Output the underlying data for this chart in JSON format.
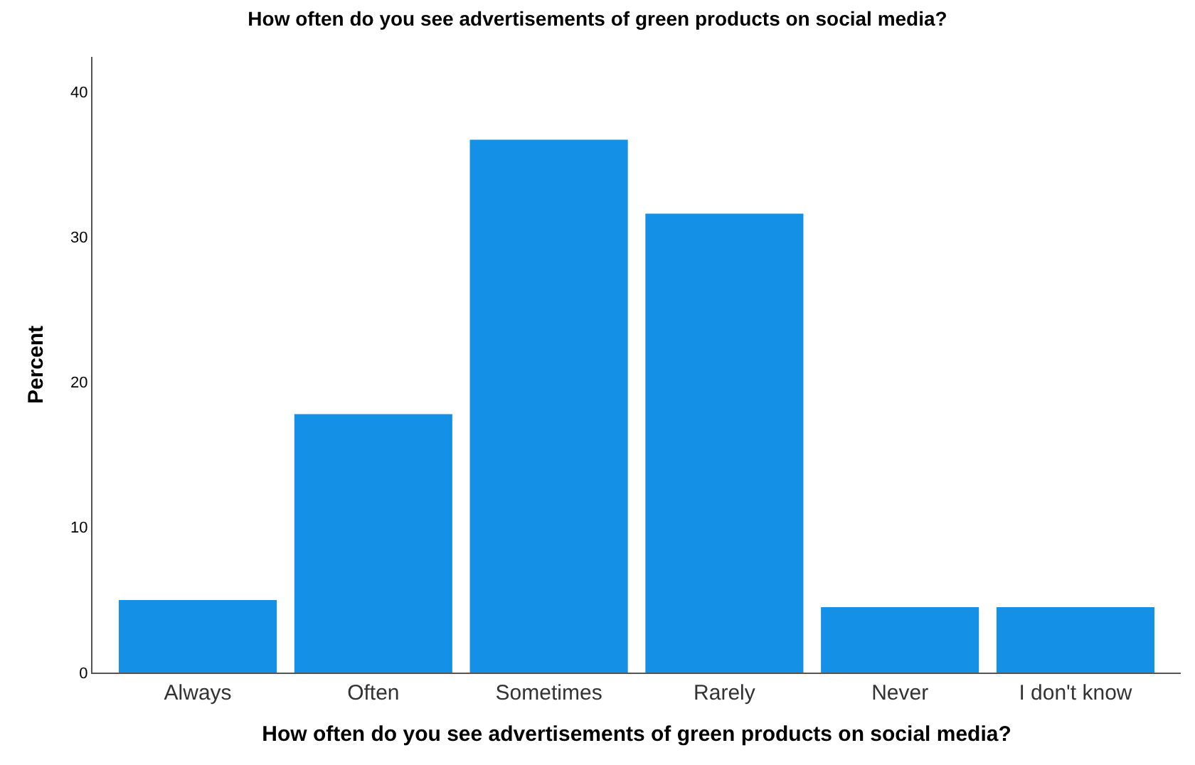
{
  "chart_data": {
    "type": "bar",
    "title": "How often do you see advertisements of green products on social media?",
    "xlabel": "How often do you see advertisements of green products on social media?",
    "ylabel": "Percent",
    "categories": [
      "Always",
      "Often",
      "Sometimes",
      "Rarely",
      "Never",
      "I don't know"
    ],
    "values": [
      5.0,
      17.8,
      36.7,
      31.6,
      4.5,
      4.5
    ],
    "color": "#1491e6",
    "ylim": [
      0,
      42.4
    ],
    "yticks": [
      0,
      10,
      20,
      30,
      40
    ]
  }
}
